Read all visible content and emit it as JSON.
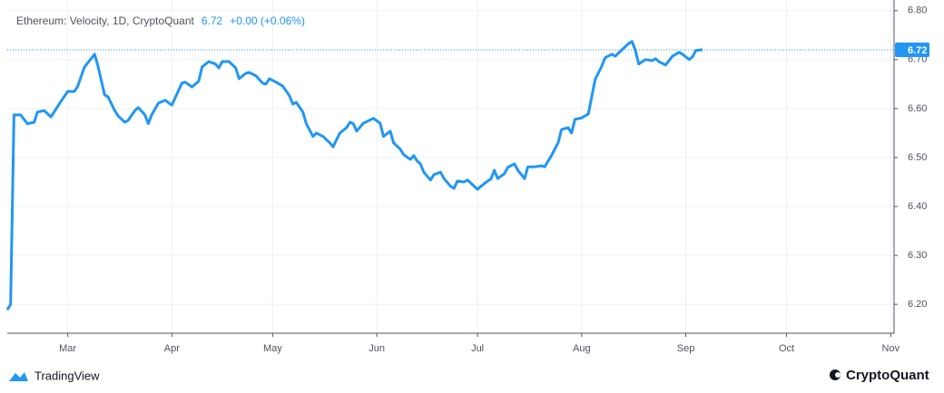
{
  "chart_data": {
    "type": "line",
    "title": "Ethereum: Velocity, 1D, CryptoQuant",
    "change": "+0.00 (+0.06%)",
    "x": [
      41,
      42,
      43,
      45,
      47,
      49,
      50,
      52,
      54,
      57,
      59,
      61,
      62,
      64,
      67,
      68,
      70,
      71,
      73,
      74,
      76,
      77,
      79,
      80,
      82,
      83,
      84,
      86,
      88,
      90,
      91,
      93,
      94,
      96,
      98,
      99,
      101,
      103,
      104,
      105,
      107,
      109,
      110,
      112,
      113,
      115,
      117,
      118,
      119,
      121,
      123,
      125,
      126,
      127,
      129,
      130,
      132,
      133,
      135,
      137,
      138,
      140,
      142,
      143,
      144,
      145,
      147,
      150,
      152,
      153,
      155,
      156,
      158,
      159,
      161,
      162,
      163,
      164,
      165,
      167,
      168,
      170,
      171,
      173,
      174,
      175,
      177,
      178,
      179,
      181,
      182,
      184,
      185,
      186,
      187,
      189,
      190,
      192,
      193,
      195,
      196,
      198,
      200,
      201,
      203,
      205,
      206,
      208,
      209,
      210,
      212,
      213,
      214,
      216,
      218,
      219,
      221,
      222,
      224,
      226,
      227,
      228,
      229,
      231,
      233,
      234,
      235,
      237,
      239,
      240,
      241,
      242,
      244,
      245,
      246,
      248
    ],
    "series": [
      {
        "name": "Ethereum: Velocity",
        "color": "#2196f3",
        "values": [
          6.189,
          6.2,
          6.587,
          6.587,
          6.569,
          6.572,
          6.593,
          6.596,
          6.583,
          6.615,
          6.635,
          6.635,
          6.646,
          6.685,
          6.711,
          6.687,
          6.628,
          6.624,
          6.596,
          6.585,
          6.572,
          6.576,
          6.596,
          6.602,
          6.587,
          6.569,
          6.587,
          6.611,
          6.617,
          6.607,
          6.622,
          6.652,
          6.654,
          6.644,
          6.656,
          6.685,
          6.696,
          6.691,
          6.683,
          6.696,
          6.696,
          6.683,
          6.661,
          6.672,
          6.674,
          6.667,
          6.652,
          6.65,
          6.661,
          6.654,
          6.646,
          6.626,
          6.609,
          6.613,
          6.593,
          6.569,
          6.543,
          6.55,
          6.543,
          6.53,
          6.522,
          6.55,
          6.561,
          6.572,
          6.569,
          6.554,
          6.57,
          6.58,
          6.57,
          6.543,
          6.554,
          6.53,
          6.517,
          6.506,
          6.496,
          6.504,
          6.493,
          6.487,
          6.47,
          6.454,
          6.465,
          6.47,
          6.457,
          6.441,
          6.437,
          6.452,
          6.45,
          6.454,
          6.448,
          6.435,
          6.441,
          6.452,
          6.456,
          6.474,
          6.457,
          6.467,
          6.48,
          6.487,
          6.474,
          6.457,
          6.481,
          6.481,
          6.483,
          6.481,
          6.504,
          6.53,
          6.557,
          6.561,
          6.55,
          6.578,
          6.581,
          6.585,
          6.589,
          6.659,
          6.687,
          6.704,
          6.711,
          6.707,
          6.72,
          6.733,
          6.737,
          6.719,
          6.691,
          6.7,
          6.698,
          6.702,
          6.696,
          6.689,
          6.707,
          6.711,
          6.715,
          6.711,
          6.7,
          6.706,
          6.719,
          6.72
        ]
      }
    ],
    "xlim": [
      41,
      305
    ],
    "xticks": [
      {
        "value": 59,
        "label": "Mar"
      },
      {
        "value": 90,
        "label": "Apr"
      },
      {
        "value": 120,
        "label": "May"
      },
      {
        "value": 151,
        "label": "Jun"
      },
      {
        "value": 181,
        "label": "Jul"
      },
      {
        "value": 212,
        "label": "Aug"
      },
      {
        "value": 243,
        "label": "Sep"
      },
      {
        "value": 273,
        "label": "Oct"
      },
      {
        "value": 304,
        "label": "Nov"
      }
    ],
    "ylim": [
      6.141,
      6.807
    ],
    "yticks": [
      {
        "value": 6.2,
        "label": "6.20"
      },
      {
        "value": 6.3,
        "label": "6.30"
      },
      {
        "value": 6.4,
        "label": "6.40"
      },
      {
        "value": 6.5,
        "label": "6.50"
      },
      {
        "value": 6.6,
        "label": "6.60"
      },
      {
        "value": 6.7,
        "label": "6.70"
      },
      {
        "value": 6.8,
        "label": "6.80"
      }
    ],
    "grid": true
  },
  "branding": {
    "left": "TradingView",
    "right": "CryptoQuant"
  }
}
